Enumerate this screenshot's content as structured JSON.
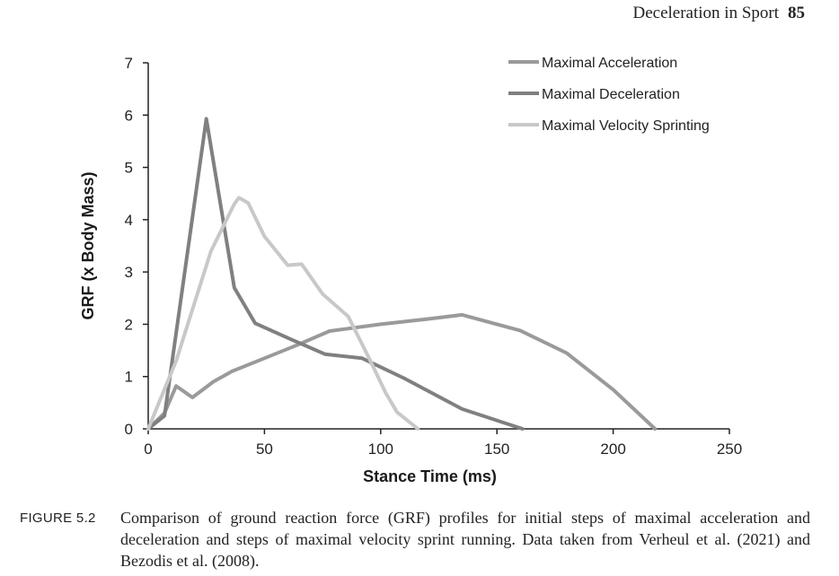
{
  "header": {
    "running_title": "Deceleration in Sport",
    "page_number": "85"
  },
  "caption": {
    "label": "FIGURE 5.2",
    "text": "Comparison of ground reaction force (GRF) profiles for initial steps of maximal acceleration and deceleration and steps of maximal velocity sprint running. Data taken from Verheul et al. (2021) and Bezodis et al. (2008)."
  },
  "chart_data": {
    "type": "line",
    "title": "",
    "xlabel": "Stance Time (ms)",
    "ylabel": "GRF (x Body Mass)",
    "xlim": [
      0,
      250
    ],
    "ylim": [
      0,
      7
    ],
    "xticks": [
      0,
      50,
      100,
      150,
      200,
      250
    ],
    "yticks": [
      0,
      1,
      2,
      3,
      4,
      5,
      6,
      7
    ],
    "grid": false,
    "legend_position": "top-right",
    "series": [
      {
        "name": "Maximal Acceleration",
        "color": "#9a9a9a",
        "points": [
          [
            0,
            0
          ],
          [
            7,
            0.3
          ],
          [
            12,
            0.82
          ],
          [
            19,
            0.6
          ],
          [
            28,
            0.9
          ],
          [
            36,
            1.1
          ],
          [
            50,
            1.35
          ],
          [
            64,
            1.6
          ],
          [
            78,
            1.87
          ],
          [
            100,
            2.0
          ],
          [
            120,
            2.1
          ],
          [
            135,
            2.18
          ],
          [
            160,
            1.88
          ],
          [
            180,
            1.45
          ],
          [
            200,
            0.75
          ],
          [
            218,
            0
          ]
        ]
      },
      {
        "name": "Maximal Deceleration",
        "color": "#808080",
        "points": [
          [
            0,
            0
          ],
          [
            7,
            0.25
          ],
          [
            25,
            5.93
          ],
          [
            37,
            2.7
          ],
          [
            46,
            2.02
          ],
          [
            62,
            1.7
          ],
          [
            76,
            1.43
          ],
          [
            92,
            1.35
          ],
          [
            110,
            0.97
          ],
          [
            135,
            0.38
          ],
          [
            161,
            0
          ]
        ]
      },
      {
        "name": "Maximal Velocity Sprinting",
        "color": "#c8c8c8",
        "points": [
          [
            0,
            0
          ],
          [
            12,
            1.3
          ],
          [
            27,
            3.4
          ],
          [
            37,
            4.3
          ],
          [
            39,
            4.42
          ],
          [
            43,
            4.32
          ],
          [
            50,
            3.68
          ],
          [
            60,
            3.13
          ],
          [
            66,
            3.15
          ],
          [
            75,
            2.58
          ],
          [
            86,
            2.15
          ],
          [
            95,
            1.35
          ],
          [
            102,
            0.7
          ],
          [
            107,
            0.32
          ],
          [
            116,
            0
          ]
        ]
      }
    ]
  }
}
